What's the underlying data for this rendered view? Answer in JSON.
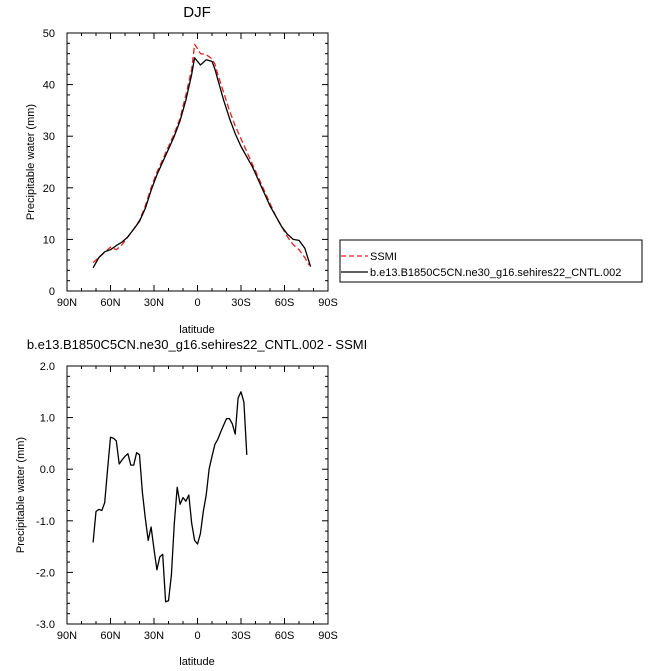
{
  "chart_data": [
    {
      "type": "line",
      "title": "DJF",
      "xlabel": "latitude",
      "ylabel": "Precipitable water (mm)",
      "xlim": [
        90,
        -90
      ],
      "ylim": [
        0,
        50
      ],
      "x_ticks": [
        90,
        60,
        30,
        0,
        -30,
        -60,
        -90
      ],
      "x_tick_labels": [
        "90N",
        "60N",
        "30N",
        "0",
        "30S",
        "60S",
        "90S"
      ],
      "y_ticks": [
        0,
        10,
        20,
        30,
        40,
        50
      ],
      "y_tick_labels": [
        "0",
        "10",
        "20",
        "30",
        "40",
        "50"
      ],
      "legend": "outside-right",
      "series": [
        {
          "name": "SSMI",
          "color": "#e8201e",
          "dash": true,
          "points": [
            [
              72,
              5.5
            ],
            [
              68,
              6.5
            ],
            [
              64,
              7.5
            ],
            [
              60,
              8.5
            ],
            [
              56,
              8
            ],
            [
              52,
              9
            ],
            [
              48,
              10.5
            ],
            [
              44,
              12
            ],
            [
              40,
              13.7
            ],
            [
              36,
              16.5
            ],
            [
              32,
              20
            ],
            [
              28,
              23
            ],
            [
              24,
              25.5
            ],
            [
              20,
              28
            ],
            [
              16,
              30.5
            ],
            [
              12,
              33.5
            ],
            [
              8,
              38
            ],
            [
              4,
              43
            ],
            [
              2,
              47.8
            ],
            [
              0,
              47
            ],
            [
              -2,
              46
            ],
            [
              -6,
              45.8
            ],
            [
              -10,
              45
            ],
            [
              -12,
              44
            ],
            [
              -14,
              42
            ],
            [
              -18,
              38.5
            ],
            [
              -22,
              35
            ],
            [
              -26,
              32
            ],
            [
              -30,
              29.5
            ],
            [
              -34,
              27
            ],
            [
              -38,
              24.5
            ],
            [
              -42,
              22
            ],
            [
              -46,
              19.5
            ],
            [
              -50,
              17
            ],
            [
              -54,
              14.5
            ],
            [
              -58,
              12.5
            ],
            [
              -62,
              10.5
            ],
            [
              -66,
              9
            ],
            [
              -70,
              8
            ],
            [
              -74,
              6.5
            ],
            [
              -77,
              5
            ]
          ]
        },
        {
          "name": "b.e13.B1850C5CN.ne30_g16.sehires22_CNTL.002",
          "color": "#000000",
          "dash": false,
          "points": [
            [
              72,
              4.5
            ],
            [
              68,
              6.5
            ],
            [
              64,
              7.6
            ],
            [
              60,
              8
            ],
            [
              56,
              8.8
            ],
            [
              52,
              9.5
            ],
            [
              48,
              10.5
            ],
            [
              44,
              12
            ],
            [
              40,
              13.5
            ],
            [
              36,
              16
            ],
            [
              32,
              19.5
            ],
            [
              28,
              22.5
            ],
            [
              24,
              25
            ],
            [
              20,
              27.5
            ],
            [
              16,
              30
            ],
            [
              12,
              33
            ],
            [
              8,
              37
            ],
            [
              4,
              42
            ],
            [
              2,
              45.2
            ],
            [
              0,
              44.5
            ],
            [
              -2,
              43.8
            ],
            [
              -6,
              44.8
            ],
            [
              -10,
              44.5
            ],
            [
              -12,
              43
            ],
            [
              -14,
              41
            ],
            [
              -18,
              37
            ],
            [
              -22,
              33.5
            ],
            [
              -26,
              30.5
            ],
            [
              -30,
              28
            ],
            [
              -34,
              26
            ],
            [
              -38,
              24
            ],
            [
              -42,
              21.5
            ],
            [
              -46,
              19
            ],
            [
              -50,
              16.5
            ],
            [
              -54,
              14.5
            ],
            [
              -58,
              12.5
            ],
            [
              -62,
              11
            ],
            [
              -66,
              10
            ],
            [
              -70,
              9.8
            ],
            [
              -74,
              8.3
            ],
            [
              -78,
              4.7
            ]
          ]
        }
      ]
    },
    {
      "type": "line",
      "title": "b.e13.B1850C5CN.ne30_g16.sehires22_CNTL.002 - SSMI",
      "xlabel": "latitude",
      "ylabel": "Precipitable water (mm)",
      "xlim": [
        90,
        -90
      ],
      "ylim": [
        -3,
        2
      ],
      "x_ticks": [
        90,
        60,
        30,
        0,
        -30,
        -60,
        -90
      ],
      "x_tick_labels": [
        "90N",
        "60N",
        "30N",
        "0",
        "30S",
        "60S",
        "90S"
      ],
      "y_ticks": [
        -3,
        -2,
        -1,
        0,
        1,
        2
      ],
      "y_tick_labels": [
        "-3.0",
        "-2.0",
        "-1.0",
        "0.0",
        "1.0",
        "2.0"
      ],
      "series": [
        {
          "color": "#000000",
          "dash": false,
          "points": [
            [
              72,
              -1.42
            ],
            [
              70,
              -0.82
            ],
            [
              68,
              -0.78
            ],
            [
              66,
              -0.8
            ],
            [
              64,
              -0.65
            ],
            [
              62,
              0
            ],
            [
              60,
              0.62
            ],
            [
              58,
              0.6
            ],
            [
              56,
              0.55
            ],
            [
              54,
              0.1
            ],
            [
              52,
              0.18
            ],
            [
              50,
              0.25
            ],
            [
              48,
              0.3
            ],
            [
              46,
              0.08
            ],
            [
              44,
              0.08
            ],
            [
              42,
              0.32
            ],
            [
              40,
              0.28
            ],
            [
              38,
              -0.45
            ],
            [
              36,
              -0.95
            ],
            [
              34,
              -1.38
            ],
            [
              32,
              -1.12
            ],
            [
              30,
              -1.55
            ],
            [
              28,
              -1.95
            ],
            [
              26,
              -1.7
            ],
            [
              24,
              -1.65
            ],
            [
              22,
              -2.57
            ],
            [
              20,
              -2.55
            ],
            [
              18,
              -2.05
            ],
            [
              16,
              -1.05
            ],
            [
              14,
              -0.35
            ],
            [
              12,
              -0.68
            ],
            [
              10,
              -0.55
            ],
            [
              8,
              -0.62
            ],
            [
              6,
              -0.5
            ],
            [
              4,
              -1.05
            ],
            [
              2,
              -1.38
            ],
            [
              0,
              -1.45
            ],
            [
              -2,
              -1.25
            ],
            [
              -4,
              -0.82
            ],
            [
              -6,
              -0.5
            ],
            [
              -8,
              0
            ],
            [
              -10,
              0.25
            ],
            [
              -12,
              0.48
            ],
            [
              -14,
              0.58
            ],
            [
              -16,
              0.72
            ],
            [
              -18,
              0.85
            ],
            [
              -20,
              0.98
            ],
            [
              -22,
              0.98
            ],
            [
              -24,
              0.88
            ],
            [
              -26,
              0.68
            ],
            [
              -28,
              1.38
            ],
            [
              -30,
              1.5
            ],
            [
              -32,
              1.3
            ],
            [
              -34,
              0.28
            ]
          ]
        }
      ]
    }
  ]
}
